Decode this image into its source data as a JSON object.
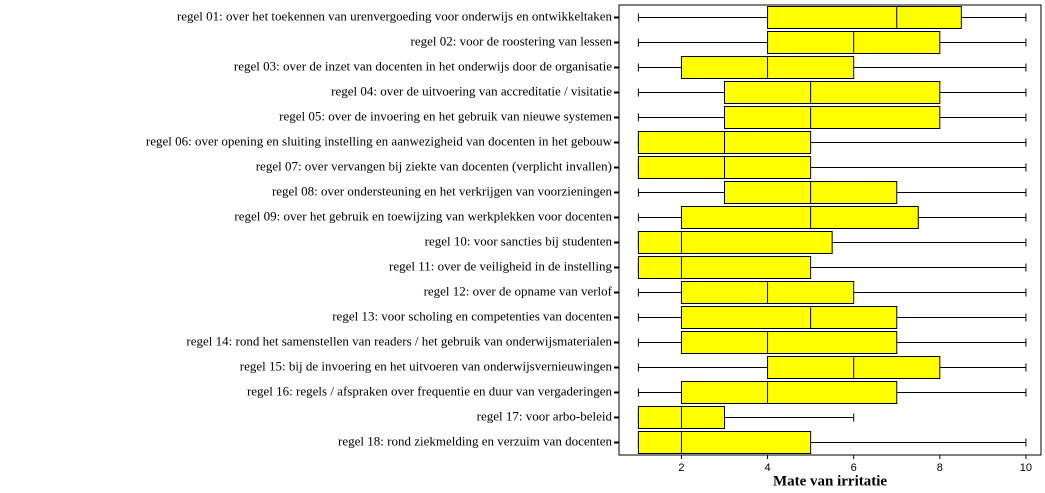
{
  "chart_data": {
    "type": "boxplot",
    "x_label": "Mate van irritatie",
    "color": "#ffff00",
    "categories": [
      "regel 01: over het toekennen van urenvergoeding voor onderwijs en ontwikkeltaken",
      "regel 02: voor de roostering van lessen",
      "regel 03: over de inzet van docenten in het onderwijs door de organisatie",
      "regel 04: over de uitvoering van accreditatie / visitatie",
      "regel 05: over de invoering en het gebruik van nieuwe systemen",
      "regel 06: over opening en sluiting instelling en aanwezigheid van docenten in het gebouw",
      "regel 07: over vervangen bij ziekte van docenten (verplicht invallen)",
      "regel 08: over ondersteuning en het verkrijgen van voorzieningen",
      "regel 09: over het gebruik en toewijzing van werkplekken voor docenten",
      "regel 10: voor sancties bij studenten",
      "regel 11: over de veiligheid in de instelling",
      "regel 12: over de opname van verlof",
      "regel 13: voor scholing en competenties van docenten",
      "regel 14: rond het samenstellen van readers / het gebruik van onderwijsmaterialen",
      "regel 15: bij de invoering en het uitvoeren van onderwijsvernieuwingen",
      "regel 16: regels / afspraken over frequentie en duur van vergaderingen",
      "regel 17: voor arbo-beleid",
      "regel 18: rond ziekmelding en verzuim van docenten"
    ],
    "boxes": [
      {
        "min": 1,
        "q1": 4,
        "median": 7,
        "q3": 8.5,
        "max": 10
      },
      {
        "min": 1,
        "q1": 4,
        "median": 6,
        "q3": 8,
        "max": 10
      },
      {
        "min": 1,
        "q1": 2,
        "median": 4,
        "q3": 6,
        "max": 10
      },
      {
        "min": 1,
        "q1": 3,
        "median": 5,
        "q3": 8,
        "max": 10
      },
      {
        "min": 1,
        "q1": 3,
        "median": 5,
        "q3": 8,
        "max": 10
      },
      {
        "min": 1,
        "q1": 1,
        "median": 3,
        "q3": 5,
        "max": 10
      },
      {
        "min": 1,
        "q1": 1,
        "median": 3,
        "q3": 5,
        "max": 10
      },
      {
        "min": 1,
        "q1": 3,
        "median": 5,
        "q3": 7,
        "max": 10
      },
      {
        "min": 1,
        "q1": 2,
        "median": 5,
        "q3": 7.5,
        "max": 10
      },
      {
        "min": 1,
        "q1": 1,
        "median": 2,
        "q3": 5.5,
        "max": 10
      },
      {
        "min": 1,
        "q1": 1,
        "median": 2,
        "q3": 5,
        "max": 10
      },
      {
        "min": 1,
        "q1": 2,
        "median": 4,
        "q3": 6,
        "max": 10
      },
      {
        "min": 1,
        "q1": 2,
        "median": 5,
        "q3": 7,
        "max": 10
      },
      {
        "min": 1,
        "q1": 2,
        "median": 4,
        "q3": 7,
        "max": 10
      },
      {
        "min": 1,
        "q1": 4,
        "median": 6,
        "q3": 8,
        "max": 10
      },
      {
        "min": 1,
        "q1": 2,
        "median": 4,
        "q3": 7,
        "max": 10
      },
      {
        "min": 1,
        "q1": 1,
        "median": 2,
        "q3": 3,
        "max": 6
      },
      {
        "min": 1,
        "q1": 1,
        "median": 2,
        "q3": 5,
        "max": 10
      }
    ],
    "xlim": [
      0.55,
      10.35
    ],
    "xticks": [
      2,
      4,
      6,
      8,
      10
    ]
  }
}
